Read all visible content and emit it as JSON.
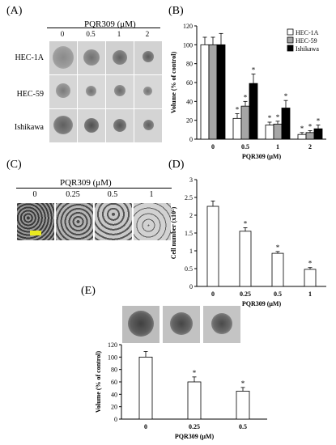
{
  "panels": {
    "A": {
      "label": "(A)",
      "concentration_title": "PQR309 (μM)",
      "concentrations": [
        "0",
        "0.5",
        "1",
        "2"
      ],
      "cell_lines": [
        "HEC-1A",
        "HEC-59",
        "Ishikawa"
      ]
    },
    "B": {
      "label": "(B)"
    },
    "C": {
      "label": "(C)",
      "concentration_title": "PQR309 (μM)",
      "concentrations": [
        "0",
        "0.25",
        "0.5",
        "1"
      ]
    },
    "D": {
      "label": "(D)"
    },
    "E": {
      "label": "(E)"
    }
  },
  "colors": {
    "hec1a": "#ffffff",
    "hec59": "#a6a6a6",
    "ishikawa": "#000000",
    "bar_single": "#ffffff",
    "scale_bar": "#e8e820"
  },
  "chart_data": [
    {
      "id": "B",
      "type": "bar",
      "categories": [
        "0",
        "0.5",
        "1",
        "2"
      ],
      "series": [
        {
          "name": "HEC-1A",
          "values": [
            100,
            22,
            15,
            5
          ],
          "errors": [
            8,
            5,
            3,
            2
          ]
        },
        {
          "name": "HEC-59",
          "values": [
            100,
            35,
            16,
            7
          ],
          "errors": [
            8,
            5,
            3,
            2
          ]
        },
        {
          "name": "Ishikawa",
          "values": [
            100,
            59,
            33,
            11
          ],
          "errors": [
            12,
            10,
            8,
            4
          ]
        }
      ],
      "significance": [
        [
          false,
          true,
          true,
          true
        ],
        [
          false,
          true,
          true,
          true
        ],
        [
          false,
          true,
          true,
          true
        ]
      ],
      "xlabel": "PQR309 (μM)",
      "ylabel": "Volume (% of control)",
      "ylim": [
        0,
        120
      ],
      "yticks": [
        0,
        20,
        40,
        60,
        80,
        100,
        120
      ],
      "legend": "top-right"
    },
    {
      "id": "D",
      "type": "bar",
      "categories": [
        "0",
        "0.25",
        "0.5",
        "1"
      ],
      "values": [
        2.25,
        1.55,
        0.93,
        0.48
      ],
      "errors": [
        0.15,
        0.1,
        0.05,
        0.05
      ],
      "significance": [
        false,
        true,
        true,
        true
      ],
      "xlabel": "PQR309 (μM)",
      "ylabel": "Cell number (x10⁵)",
      "ylim": [
        0,
        3
      ],
      "yticks": [
        0,
        0.5,
        1,
        1.5,
        2,
        2.5,
        3
      ]
    },
    {
      "id": "E",
      "type": "bar",
      "categories": [
        "0",
        "0.25",
        "0.5"
      ],
      "values": [
        100,
        60,
        45
      ],
      "errors": [
        9,
        8,
        6
      ],
      "significance": [
        false,
        true,
        true
      ],
      "xlabel": "PQR309 (μM)",
      "ylabel": "Volume (% of control)",
      "ylim": [
        0,
        120
      ],
      "yticks": [
        0,
        20,
        40,
        60,
        80,
        100,
        120
      ]
    }
  ]
}
